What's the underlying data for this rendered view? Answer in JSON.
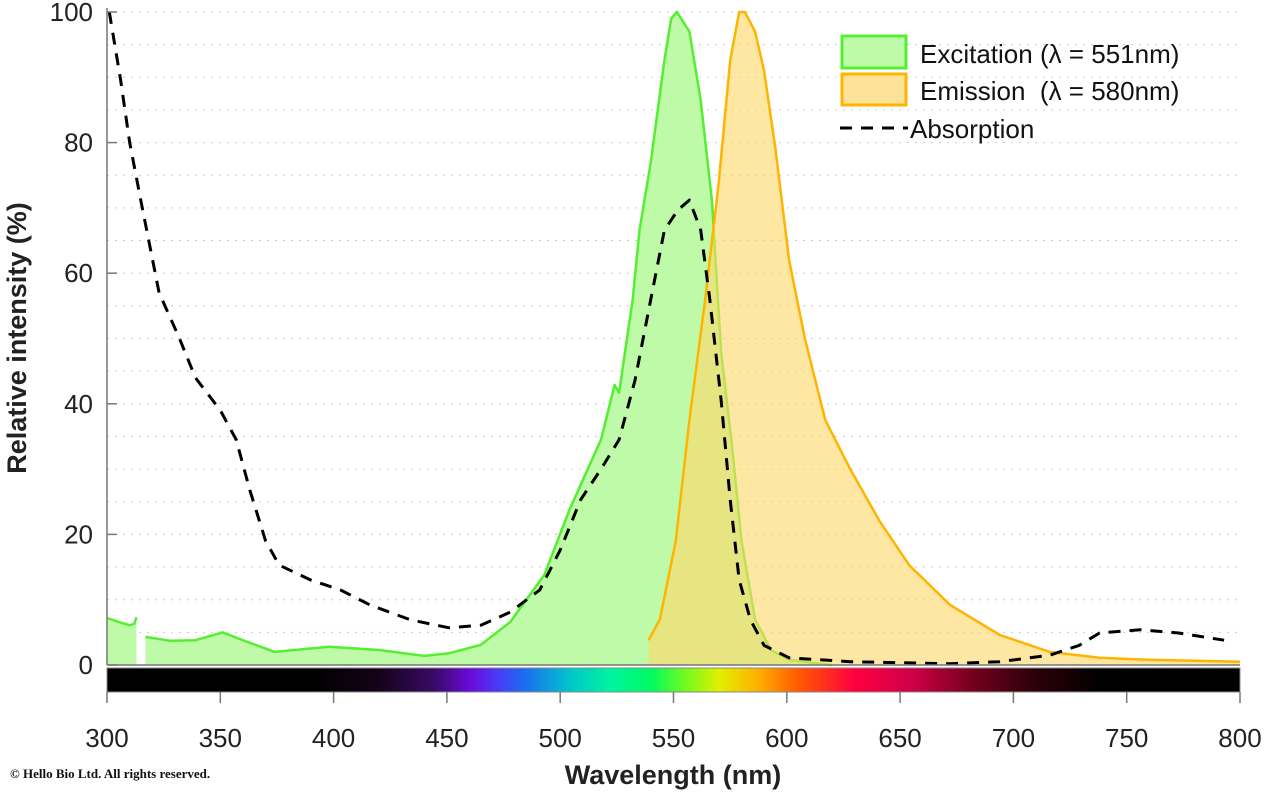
{
  "chart_data": {
    "type": "area",
    "xlabel": "Wavelength (nm)",
    "ylabel": "Relative intensity (%)",
    "xlim": [
      300,
      800
    ],
    "ylim": [
      0,
      100
    ],
    "xticks": [
      300,
      350,
      400,
      450,
      500,
      550,
      600,
      650,
      700,
      750,
      800
    ],
    "yticks": [
      0,
      20,
      40,
      60,
      80,
      100
    ],
    "grid": "horizontal dotted, every 5 units",
    "legend_position": "top-right",
    "colors": {
      "excitation_fill": "#bffaa9",
      "excitation_line": "#55ee33",
      "emission_fill": "#fdd86a",
      "emission_line": "#ffb400",
      "absorption_line": "#000000"
    },
    "series": [
      {
        "name": "Excitation (λ = 551nm)",
        "style": "filled",
        "x": [
          300,
          306,
          310,
          312,
          313,
          null,
          317,
          328,
          339,
          351,
          363,
          374,
          398,
          420,
          440,
          451,
          465,
          478,
          493,
          504,
          518,
          524,
          526,
          532,
          535,
          540,
          546,
          549,
          551.5,
          557,
          562,
          567,
          571,
          576,
          580,
          586,
          593,
          601,
          615,
          620
        ],
        "y": [
          7.2,
          6.5,
          6.1,
          6.3,
          7.3,
          null,
          4.3,
          3.7,
          3.8,
          5.0,
          3.4,
          2.0,
          2.8,
          2.3,
          1.4,
          1.8,
          3.1,
          6.6,
          13.8,
          23.7,
          34.5,
          42.9,
          41.7,
          56,
          66.6,
          77,
          92.6,
          99,
          100,
          97,
          86.5,
          71,
          48,
          33,
          19,
          7,
          2.3,
          0.8,
          0.2,
          0
        ]
      },
      {
        "name": "Emission  (λ = 580nm)",
        "style": "filled",
        "x": [
          539,
          544,
          551,
          557,
          564,
          570,
          575,
          579,
          581.5,
          586,
          590,
          595,
          601,
          608,
          617,
          628,
          641,
          654,
          672,
          694,
          716,
          738,
          760,
          800
        ],
        "y": [
          3.8,
          7,
          19,
          37.5,
          56,
          74,
          92.6,
          100,
          100,
          97,
          91,
          79,
          62,
          50,
          37.5,
          30,
          22,
          15.3,
          9.2,
          4.6,
          2,
          1.1,
          0.8,
          0.5
        ]
      },
      {
        "name": "Absorption",
        "style": "dashed",
        "x": [
          301,
          306,
          310,
          315,
          323,
          332,
          339,
          350,
          357,
          363,
          370,
          376,
          390,
          403,
          416,
          434,
          451,
          465,
          478,
          491,
          500,
          509,
          518,
          526,
          533,
          540,
          546,
          552,
          557,
          562,
          566,
          571,
          575,
          579,
          584,
          590,
          601,
          628,
          672,
          694,
          716,
          729,
          738,
          756,
          773,
          793
        ],
        "y": [
          100,
          89.6,
          80,
          71,
          57,
          50,
          44,
          39,
          34.5,
          26.8,
          19,
          15.3,
          13,
          11.5,
          9.2,
          6.9,
          5.7,
          6.1,
          8.1,
          11.5,
          17.6,
          25.3,
          30,
          34.5,
          43.6,
          56,
          66.6,
          69.7,
          71.2,
          66.6,
          56,
          40.6,
          25.3,
          13,
          6.9,
          3,
          1.1,
          0.5,
          0.2,
          0.5,
          1.5,
          3,
          4.9,
          5.4,
          4.9,
          3.8
        ]
      }
    ]
  },
  "copyright": "© Hello Bio Ltd. All rights reserved."
}
